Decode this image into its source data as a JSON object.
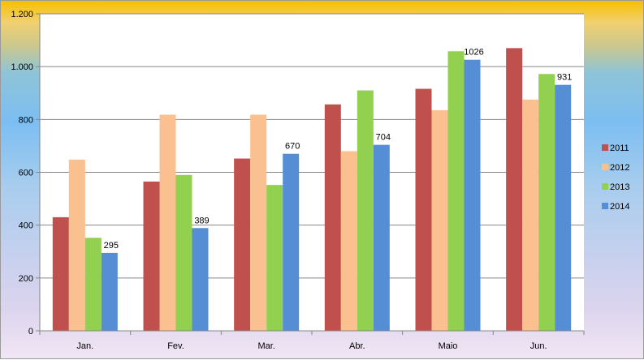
{
  "chart_data": {
    "type": "bar",
    "categories": [
      "Jan.",
      "Fev.",
      "Mar.",
      "Abr.",
      "Maio",
      "Jun."
    ],
    "series": [
      {
        "name": "2011",
        "color": "#c0504d",
        "values": [
          430,
          565,
          652,
          857,
          916,
          1070
        ]
      },
      {
        "name": "2012",
        "color": "#fac090",
        "values": [
          648,
          818,
          818,
          680,
          835,
          875
        ]
      },
      {
        "name": "2013",
        "color": "#92d050",
        "values": [
          352,
          590,
          552,
          910,
          1058,
          972
        ]
      },
      {
        "name": "2014",
        "color": "#558ed5",
        "values": [
          295,
          389,
          670,
          704,
          1026,
          931
        ]
      }
    ],
    "data_labels": {
      "series": "2014",
      "texts": [
        "295",
        "389",
        "670",
        "704",
        "1026",
        "931"
      ]
    },
    "yticks": [
      {
        "value": 0,
        "label": "0"
      },
      {
        "value": 200,
        "label": "200"
      },
      {
        "value": 400,
        "label": "400"
      },
      {
        "value": 600,
        "label": "600"
      },
      {
        "value": 800,
        "label": "800"
      },
      {
        "value": 1000,
        "label": "1.000"
      },
      {
        "value": 1200,
        "label": "1.200"
      }
    ],
    "ylim": [
      0,
      1200
    ],
    "grid": true,
    "legend_position": "right",
    "title": "",
    "xlabel": "",
    "ylabel": ""
  }
}
